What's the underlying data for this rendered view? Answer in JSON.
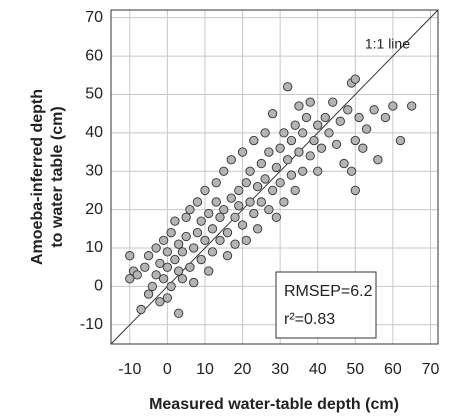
{
  "chart_data": {
    "type": "scatter",
    "x_label": "Measured water-table depth (cm)",
    "y_label": [
      "Amoeba-inferred depth",
      "to water table (cm)"
    ],
    "annotations": {
      "line": "1:1 line",
      "rmsep": "RMSEP=6.2",
      "r2": "r²=0.83"
    },
    "xlim": [
      -15,
      72
    ],
    "ylim": [
      -15,
      72
    ],
    "xticks": [
      -10,
      0,
      10,
      20,
      30,
      40,
      50,
      60,
      70
    ],
    "yticks": [
      -10,
      0,
      10,
      20,
      30,
      40,
      50,
      60,
      70
    ],
    "grid": true,
    "color": "#b4b4b4",
    "x": [
      -10,
      -10,
      -9,
      -8,
      -7,
      -6,
      -5,
      -5,
      -4,
      -3,
      -3,
      -2,
      -2,
      -1,
      -1,
      0,
      0,
      0,
      1,
      1,
      2,
      2,
      3,
      3,
      3,
      4,
      4,
      5,
      5,
      6,
      6,
      7,
      7,
      8,
      8,
      9,
      9,
      10,
      10,
      11,
      11,
      12,
      12,
      13,
      13,
      14,
      14,
      15,
      15,
      16,
      16,
      17,
      17,
      18,
      18,
      19,
      19,
      20,
      20,
      21,
      21,
      22,
      22,
      23,
      23,
      24,
      24,
      25,
      25,
      26,
      26,
      27,
      27,
      28,
      28,
      29,
      29,
      30,
      30,
      31,
      31,
      32,
      32,
      33,
      33,
      34,
      34,
      35,
      35,
      36,
      36,
      37,
      38,
      38,
      39,
      40,
      40,
      41,
      42,
      43,
      44,
      45,
      46,
      47,
      48,
      49,
      49,
      50,
      50,
      50,
      51,
      52,
      53,
      55,
      56,
      58,
      60,
      62,
      65
    ],
    "y": [
      8,
      2,
      4,
      3,
      -6,
      5,
      -2,
      8,
      0,
      3,
      10,
      -4,
      6,
      2,
      12,
      -3,
      5,
      9,
      0,
      14,
      7,
      17,
      -7,
      4,
      11,
      2,
      9,
      13,
      18,
      5,
      20,
      10,
      1,
      14,
      22,
      7,
      17,
      12,
      25,
      4,
      19,
      15,
      9,
      22,
      27,
      12,
      18,
      30,
      20,
      8,
      14,
      23,
      33,
      18,
      11,
      25,
      21,
      16,
      35,
      27,
      12,
      22,
      30,
      38,
      19,
      26,
      15,
      32,
      22,
      28,
      40,
      20,
      35,
      25,
      45,
      31,
      18,
      36,
      27,
      40,
      22,
      33,
      52,
      29,
      38,
      42,
      25,
      35,
      47,
      30,
      40,
      44,
      34,
      48,
      38,
      42,
      30,
      36,
      44,
      40,
      48,
      37,
      43,
      32,
      46,
      53,
      30,
      54,
      25,
      38,
      44,
      36,
      41,
      46,
      33,
      44,
      47,
      38,
      47
    ]
  }
}
